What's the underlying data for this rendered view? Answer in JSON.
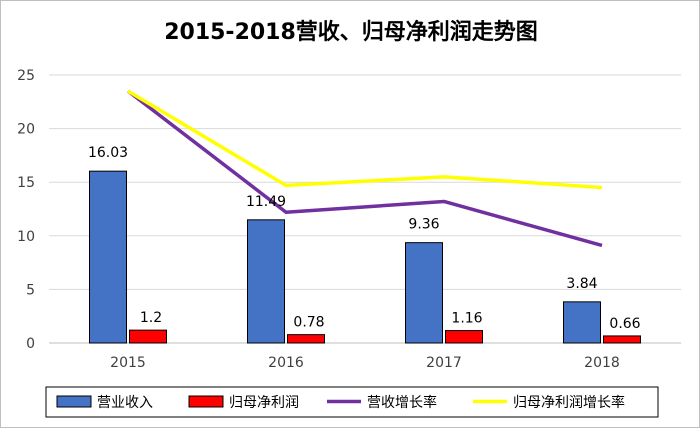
{
  "chart_data": {
    "type": "bar",
    "title": "2015-2018营收、归母净利润走势图",
    "categories": [
      "2015",
      "2016",
      "2017",
      "2018"
    ],
    "ylim": [
      0,
      25
    ],
    "yticks": [
      "0",
      "5",
      "10",
      "15",
      "20",
      "25"
    ],
    "grid": true,
    "legend_position": "bottom",
    "series": [
      {
        "name": "营业收入",
        "kind": "bar",
        "color": "#4472c4",
        "values": [
          16.03,
          11.49,
          9.36,
          3.84
        ],
        "labels": [
          "16.03",
          "11.49",
          "9.36",
          "3.84"
        ]
      },
      {
        "name": "归母净利润",
        "kind": "bar",
        "color": "#ff0000",
        "values": [
          1.2,
          0.78,
          1.16,
          0.66
        ],
        "labels": [
          "1.2",
          "0.78",
          "1.16",
          "0.66"
        ]
      },
      {
        "name": "营收增长率",
        "kind": "line",
        "color": "#7030a0",
        "values": [
          23.5,
          12.2,
          13.2,
          9.1
        ]
      },
      {
        "name": "归母净利润增长率",
        "kind": "line",
        "color": "#ffff00",
        "values": [
          23.5,
          14.7,
          15.5,
          14.5
        ]
      }
    ]
  }
}
